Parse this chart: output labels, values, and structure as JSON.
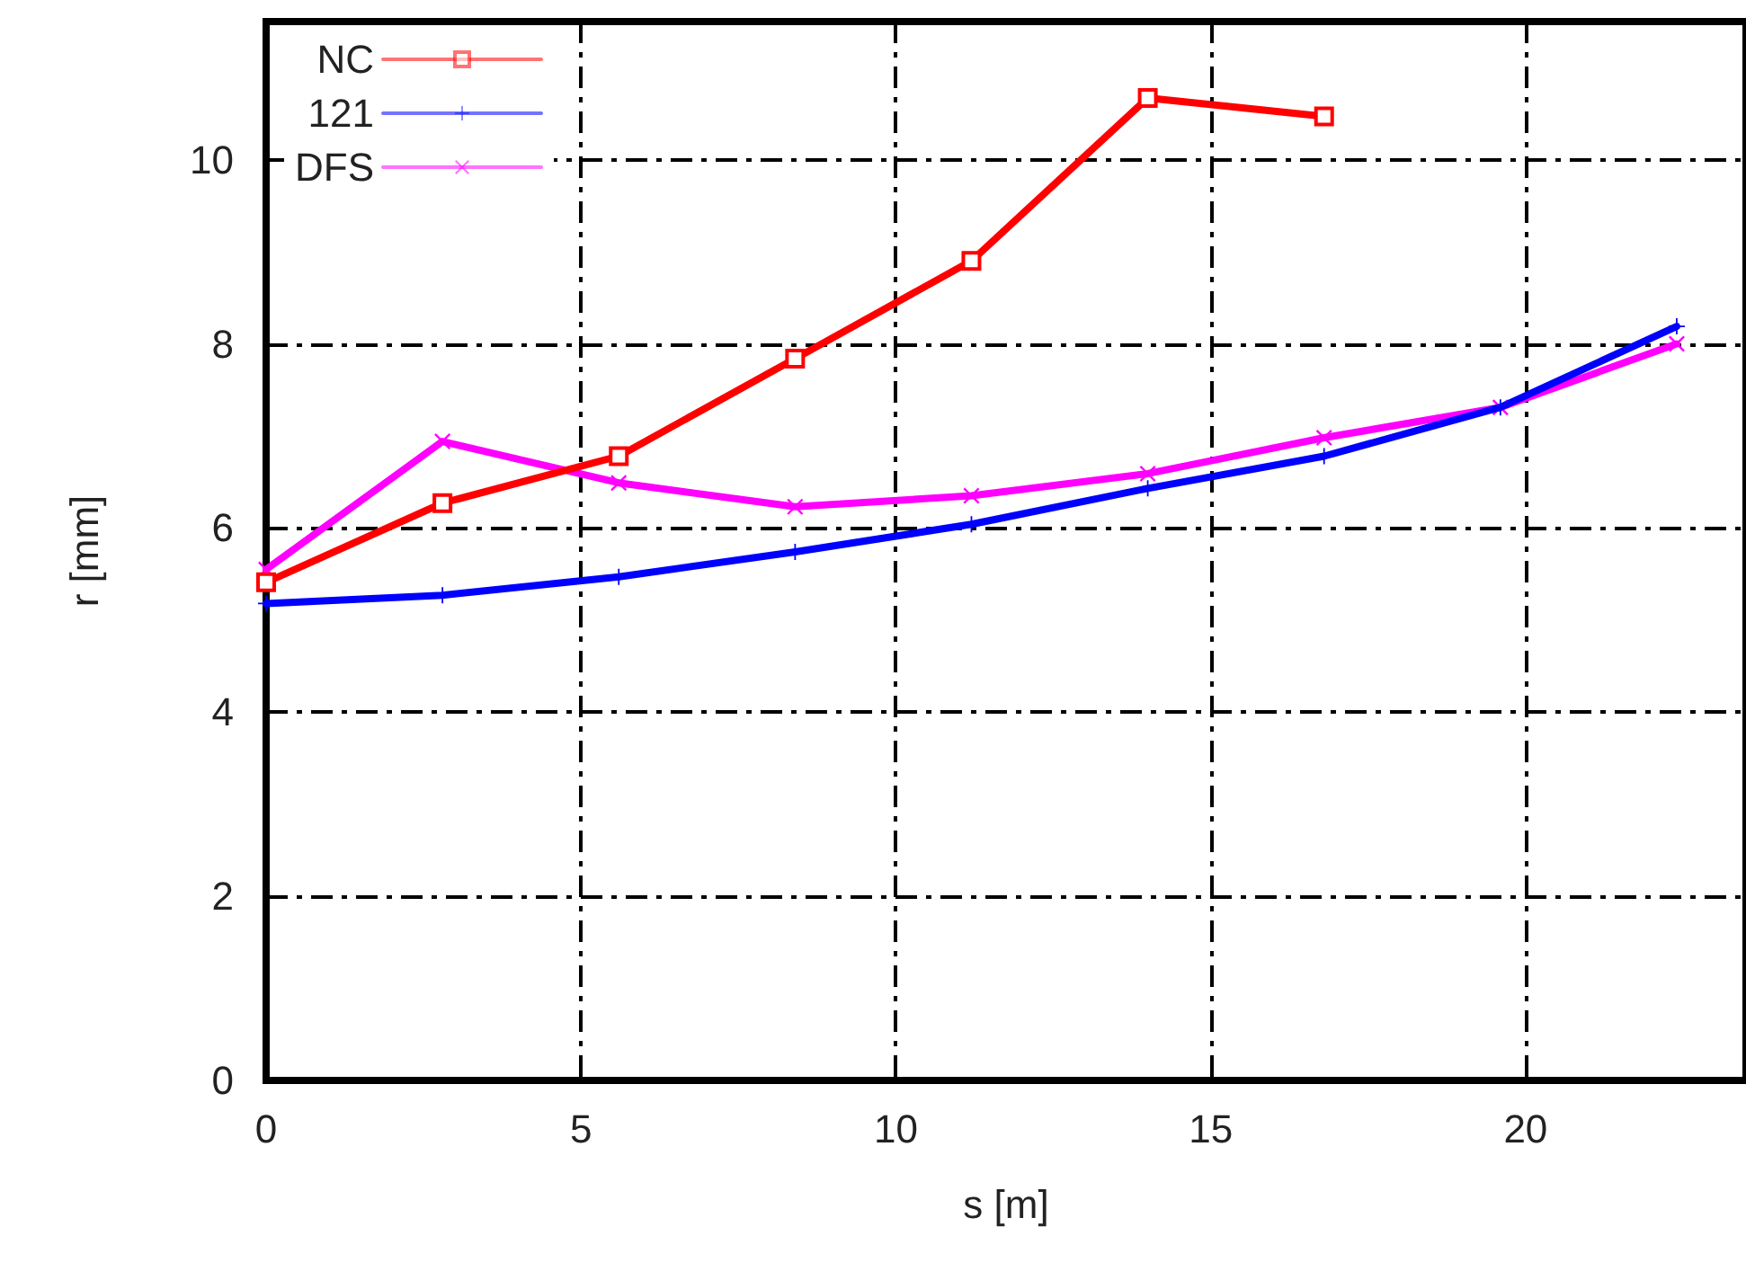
{
  "chart_data": {
    "type": "line",
    "xlabel": "s [m]",
    "ylabel": "r [mm]",
    "xlim": [
      0,
      23.5
    ],
    "ylim": [
      0,
      11.5
    ],
    "xticks": [
      0,
      5,
      10,
      15,
      20
    ],
    "yticks": [
      0,
      2,
      4,
      6,
      8,
      10
    ],
    "grid": true,
    "legend": "top left",
    "line_style": "solid",
    "x": [
      0,
      2.8,
      5.6,
      8.4,
      11.2,
      14,
      16.8,
      19.6,
      22.4
    ],
    "series": [
      {
        "name": "NC",
        "color": "#ff0000",
        "marker": "square",
        "values": [
          5.41,
          6.27,
          6.78,
          7.84,
          8.9,
          10.67,
          10.47,
          null,
          null
        ]
      },
      {
        "name": "121",
        "color": "#0000ff",
        "marker": "plus",
        "values": [
          5.18,
          5.27,
          5.47,
          5.74,
          6.04,
          6.43,
          6.78,
          7.31,
          8.19
        ]
      },
      {
        "name": "DFS",
        "color": "#ff00ff",
        "marker": "cross",
        "values": [
          5.55,
          6.94,
          6.49,
          6.23,
          6.35,
          6.59,
          6.98,
          7.31,
          8.0
        ]
      }
    ]
  }
}
